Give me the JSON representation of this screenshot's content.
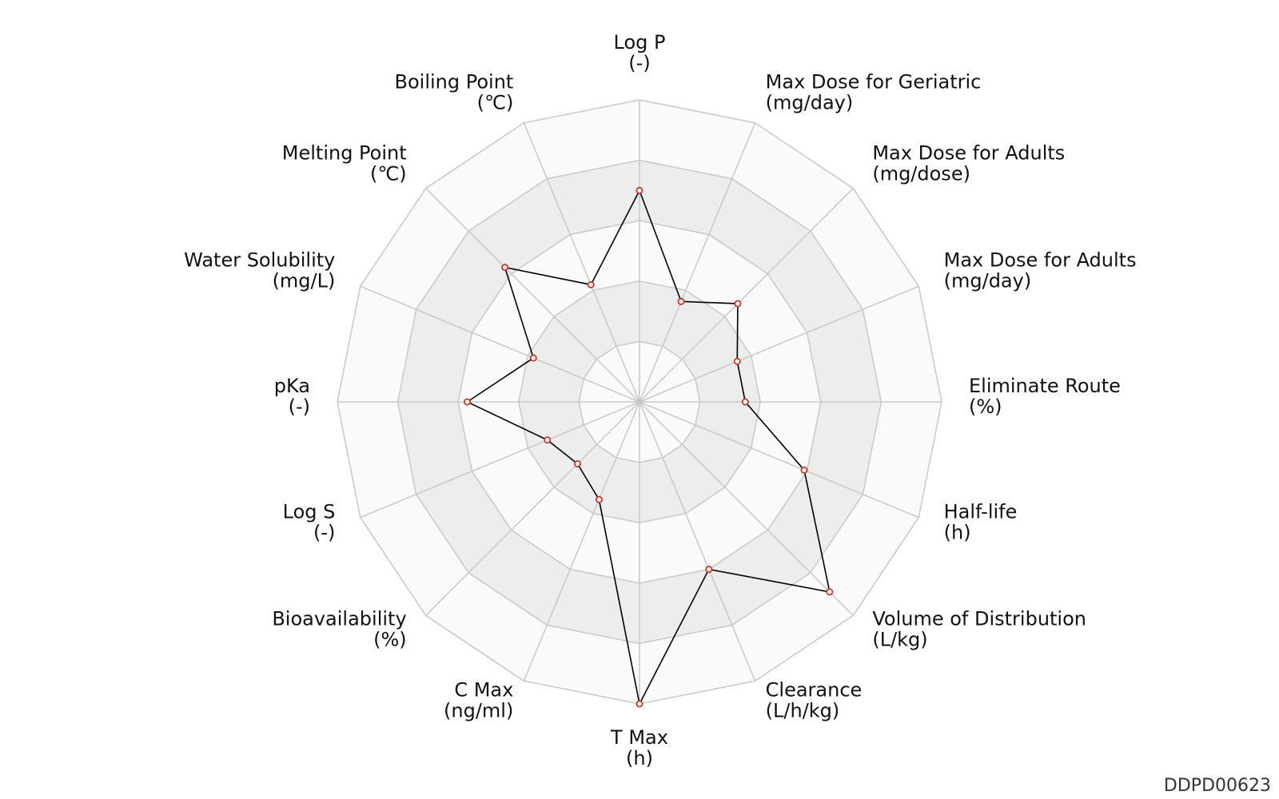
{
  "chart_data": {
    "type": "radar",
    "title": "",
    "axes": [
      {
        "name": "Log P",
        "unit": "(-)"
      },
      {
        "name": "Max Dose for Geriatric",
        "unit": "(mg/day)"
      },
      {
        "name": "Max Dose for Adults",
        "unit": "(mg/dose)"
      },
      {
        "name": "Max Dose for Adults",
        "unit": "(mg/day)"
      },
      {
        "name": "Eliminate Route",
        "unit": "(%)"
      },
      {
        "name": "Half-life",
        "unit": "(h)"
      },
      {
        "name": "Volume of Distribution",
        "unit": "(L/kg)"
      },
      {
        "name": "Clearance",
        "unit": "(L/h/kg)"
      },
      {
        "name": "T Max",
        "unit": "(h)"
      },
      {
        "name": "C Max",
        "unit": "(ng/ml)"
      },
      {
        "name": "Bioavailability",
        "unit": "(%)"
      },
      {
        "name": "Log S",
        "unit": "(-)"
      },
      {
        "name": "pKa",
        "unit": "(-)"
      },
      {
        "name": "Water Solubility",
        "unit": "(mg/L)"
      },
      {
        "name": "Melting Point",
        "unit": "(℃)"
      },
      {
        "name": "Boiling Point",
        "unit": "(℃)"
      }
    ],
    "rings": 5,
    "range": [
      0,
      1
    ],
    "series": [
      {
        "values": [
          0.7,
          0.36,
          0.46,
          0.35,
          0.35,
          0.59,
          0.89,
          0.6,
          1.0,
          0.35,
          0.29,
          0.33,
          0.57,
          0.38,
          0.63,
          0.42
        ]
      }
    ],
    "colors": {
      "line": "#000000",
      "marker_edge": "#c0392b",
      "marker_fill": "#ffffff",
      "band_light": "#fafafa",
      "band_dark": "#ededed",
      "grid": "#c8c8c8"
    }
  },
  "footer": {
    "id": "DDPD00623"
  }
}
